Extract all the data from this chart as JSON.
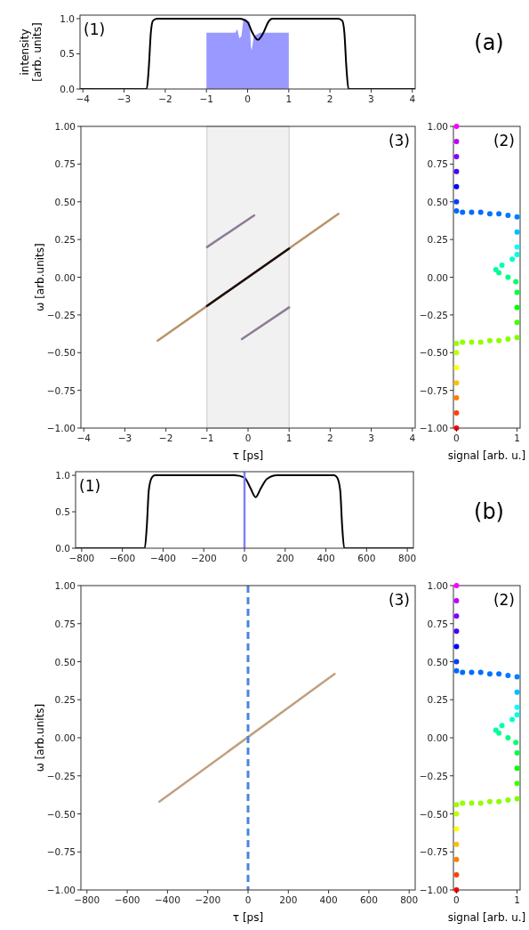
{
  "chart_data": [
    {
      "type": "line",
      "ylabel": "intensity [arb. units]",
      "annotations": [
        "(1)",
        "(a)"
      ],
      "xlim": [
        -4.07,
        4.07
      ],
      "ylim": [
        0,
        1.05
      ],
      "xticks": [
        -4,
        -3,
        -2,
        -1,
        0,
        1,
        2,
        3,
        4
      ],
      "yticks": [
        {
          "value": 0,
          "label": "0.0"
        },
        {
          "value": 0.5,
          "label": "0.5"
        },
        {
          "value": 1,
          "label": "1.0"
        }
      ],
      "grid": false,
      "series": [
        {
          "type": "area",
          "color": "#9999ff",
          "x": [
            -1,
            -0.5,
            -0.3,
            -0.25,
            -0.2,
            -0.15,
            -0.1,
            -0.05,
            0.05,
            0.08,
            0.1,
            0.15,
            0.3,
            0.5,
            1
          ],
          "values": [
            0.8,
            0.8,
            0.8,
            0.85,
            0.72,
            0.75,
            1,
            1,
            0.95,
            0.6,
            0.55,
            0.75,
            0.8,
            0.8,
            0.8
          ]
        },
        {
          "color": "#000000",
          "x": [
            -4.07,
            -2.45,
            -2.4,
            -2.35,
            -2.3,
            -2.2,
            -0.2,
            0,
            0.1,
            0.25,
            0.4,
            0.5,
            0.6,
            2.2,
            2.3,
            2.35,
            2.4,
            2.45,
            4.07
          ],
          "values": [
            0,
            0,
            0.3,
            0.8,
            0.97,
            1,
            1,
            0.95,
            0.82,
            0.7,
            0.82,
            0.95,
            1,
            1,
            0.97,
            0.8,
            0.3,
            0,
            0
          ]
        }
      ]
    },
    {
      "type": "line",
      "xlabel": "τ [ps]",
      "ylabel": "ω [arb.units]",
      "annotations": [
        "(3)"
      ],
      "xlim": [
        -4.07,
        4.07
      ],
      "ylim": [
        -1,
        1
      ],
      "xticks": [
        -4,
        -3,
        -2,
        -1,
        0,
        1,
        2,
        3,
        4
      ],
      "yticks": [
        {
          "value": -1,
          "label": "−1.00"
        },
        {
          "value": -0.75,
          "label": "−0.75"
        },
        {
          "value": -0.5,
          "label": "−0.50"
        },
        {
          "value": -0.25,
          "label": "−0.25"
        },
        {
          "value": 0,
          "label": "0.00"
        },
        {
          "value": 0.25,
          "label": "0.25"
        },
        {
          "value": 0.5,
          "label": "0.50"
        },
        {
          "value": 0.75,
          "label": "0.75"
        },
        {
          "value": 1,
          "label": "1.00"
        }
      ],
      "grid": false,
      "bands": [
        {
          "axis": "x",
          "from": -1,
          "to": 1,
          "color": "#e8e8e8"
        }
      ],
      "series": [
        {
          "color": "#b8946a",
          "x": [
            -2.2,
            2.2
          ],
          "values": [
            -0.42,
            0.42
          ]
        },
        {
          "color": "#1a1010",
          "x": [
            -1,
            1
          ],
          "values": [
            -0.19,
            0.19
          ]
        },
        {
          "color": "#8c7c94",
          "x": [
            -1,
            0.15
          ],
          "values": [
            0.2,
            0.41
          ]
        },
        {
          "color": "#8c7c94",
          "x": [
            -0.15,
            1
          ],
          "values": [
            -0.41,
            -0.2
          ]
        }
      ]
    },
    {
      "type": "scatter",
      "xlabel": "signal [arb. u.]",
      "annotations": [
        "(2)"
      ],
      "xlim": [
        -0.05,
        1.05
      ],
      "ylim": [
        -1,
        1
      ],
      "xticks": [
        0,
        1
      ],
      "yticks": [
        {
          "value": -1,
          "label": "−1.00"
        },
        {
          "value": -0.75,
          "label": "−0.75"
        },
        {
          "value": -0.5,
          "label": "−0.50"
        },
        {
          "value": -0.25,
          "label": "−0.25"
        },
        {
          "value": 0,
          "label": "0.00"
        },
        {
          "value": 0.25,
          "label": "0.25"
        },
        {
          "value": 0.5,
          "label": "0.50"
        },
        {
          "value": 0.75,
          "label": "0.75"
        },
        {
          "value": 1,
          "label": "1.00"
        }
      ],
      "grid": false,
      "marker": "circle",
      "series": [
        {
          "x": [
            0,
            0,
            0,
            0,
            0,
            0,
            0,
            0.1,
            0.25,
            0.4,
            0.55,
            0.7,
            0.85,
            1,
            1,
            1,
            1,
            0.98,
            0.85,
            0.7,
            0.65,
            0.75,
            0.92,
            1,
            1,
            1,
            1,
            0.85,
            0.7,
            0.55,
            0.4,
            0.25,
            0.1,
            0,
            0,
            0,
            0,
            0,
            0,
            0
          ],
          "values": [
            -1,
            -0.9,
            -0.8,
            -0.7,
            -0.6,
            -0.5,
            -0.44,
            -0.43,
            -0.43,
            -0.43,
            -0.42,
            -0.42,
            -0.41,
            -0.4,
            -0.3,
            -0.2,
            -0.1,
            -0.03,
            0,
            0.03,
            0.05,
            0.08,
            0.12,
            0.15,
            0.2,
            0.3,
            0.4,
            0.41,
            0.42,
            0.42,
            0.43,
            0.43,
            0.43,
            0.44,
            0.5,
            0.6,
            0.7,
            0.8,
            0.9,
            1
          ],
          "colors": [
            "#ff0000",
            "#ff4000",
            "#ff8000",
            "#ffbf00",
            "#ffff00",
            "#bfff00",
            "#99ff00",
            "#93ff00",
            "#93ff00",
            "#93ff00",
            "#8cff00",
            "#8cff00",
            "#86ff00",
            "#80ff00",
            "#40ff00",
            "#00ff00",
            "#00ff40",
            "#00ff6c",
            "#00ff80",
            "#00ff93",
            "#00ff9f",
            "#00ffb2",
            "#00ffcc",
            "#00ffdf",
            "#00ffff",
            "#00bfff",
            "#0080ff",
            "#0079ff",
            "#0073ff",
            "#0073ff",
            "#006cff",
            "#006cff",
            "#006cff",
            "#0066ff",
            "#0040ff",
            "#0000ff",
            "#4000ff",
            "#8000ff",
            "#bf00ff",
            "#ff00ff"
          ]
        }
      ]
    },
    {
      "type": "line",
      "annotations": [
        "(1)",
        "(b)"
      ],
      "xlim": [
        -830,
        830
      ],
      "ylim": [
        0,
        1.05
      ],
      "xticks": [
        -800,
        -600,
        -400,
        -200,
        0,
        200,
        400,
        600,
        800
      ],
      "yticks": [
        {
          "value": 0,
          "label": "0.0"
        },
        {
          "value": 0.5,
          "label": "0.5"
        },
        {
          "value": 1,
          "label": "1.0"
        }
      ],
      "grid": false,
      "ref_lines": [
        {
          "axis": "x",
          "value": 0,
          "color": "#8080ff"
        }
      ],
      "series": [
        {
          "color": "#000000",
          "x": [
            -830,
            -490,
            -480,
            -470,
            -455,
            -440,
            -50,
            0,
            30,
            55,
            80,
            110,
            160,
            440,
            455,
            470,
            480,
            490,
            830
          ],
          "values": [
            0,
            0,
            0.3,
            0.8,
            0.97,
            1,
            1,
            0.97,
            0.82,
            0.7,
            0.82,
            0.95,
            1,
            1,
            0.97,
            0.8,
            0.3,
            0,
            0
          ]
        }
      ]
    },
    {
      "type": "line",
      "xlabel": "τ [ps]",
      "ylabel": "ω [arb.units]",
      "annotations": [
        "(3)"
      ],
      "xlim": [
        -830,
        830
      ],
      "ylim": [
        -1,
        1
      ],
      "xticks": [
        -800,
        -600,
        -400,
        -200,
        0,
        200,
        400,
        600,
        800
      ],
      "yticks": [
        {
          "value": -1,
          "label": "−1.00"
        },
        {
          "value": -0.75,
          "label": "−0.75"
        },
        {
          "value": -0.5,
          "label": "−0.50"
        },
        {
          "value": -0.25,
          "label": "−0.25"
        },
        {
          "value": 0,
          "label": "0.00"
        },
        {
          "value": 0.25,
          "label": "0.25"
        },
        {
          "value": 0.5,
          "label": "0.50"
        },
        {
          "value": 0.75,
          "label": "0.75"
        },
        {
          "value": 1,
          "label": "1.00"
        }
      ],
      "grid": false,
      "ref_lines": [
        {
          "axis": "x",
          "value": 0,
          "color": "#4a86d8",
          "line_style": "dashed"
        }
      ],
      "series": [
        {
          "color": "#c0a080",
          "x": [
            -440,
            430
          ],
          "values": [
            -0.42,
            0.42
          ]
        }
      ]
    },
    {
      "type": "scatter",
      "xlabel": "signal [arb. u.]",
      "annotations": [
        "(2)"
      ],
      "xlim": [
        -0.05,
        1.05
      ],
      "ylim": [
        -1,
        1
      ],
      "xticks": [
        0,
        1
      ],
      "yticks": [
        {
          "value": -1,
          "label": "−1.00"
        },
        {
          "value": -0.75,
          "label": "−0.75"
        },
        {
          "value": -0.5,
          "label": "−0.50"
        },
        {
          "value": -0.25,
          "label": "−0.25"
        },
        {
          "value": 0,
          "label": "0.00"
        },
        {
          "value": 0.25,
          "label": "0.25"
        },
        {
          "value": 0.5,
          "label": "0.50"
        },
        {
          "value": 0.75,
          "label": "0.75"
        },
        {
          "value": 1,
          "label": "1.00"
        }
      ],
      "grid": false,
      "marker": "circle",
      "series": [
        {
          "x": [
            0,
            0,
            0,
            0,
            0,
            0,
            0,
            0.1,
            0.25,
            0.4,
            0.55,
            0.7,
            0.85,
            1,
            1,
            1,
            1,
            0.98,
            0.85,
            0.7,
            0.65,
            0.75,
            0.92,
            1,
            1,
            1,
            1,
            0.85,
            0.7,
            0.55,
            0.4,
            0.25,
            0.1,
            0,
            0,
            0,
            0,
            0,
            0,
            0
          ],
          "values": [
            -1,
            -0.9,
            -0.8,
            -0.7,
            -0.6,
            -0.5,
            -0.44,
            -0.43,
            -0.43,
            -0.43,
            -0.42,
            -0.42,
            -0.41,
            -0.4,
            -0.3,
            -0.2,
            -0.1,
            -0.03,
            0,
            0.03,
            0.05,
            0.08,
            0.12,
            0.15,
            0.2,
            0.3,
            0.4,
            0.41,
            0.42,
            0.42,
            0.43,
            0.43,
            0.43,
            0.44,
            0.5,
            0.6,
            0.7,
            0.8,
            0.9,
            1
          ],
          "colors": [
            "#ff0000",
            "#ff4000",
            "#ff8000",
            "#ffbf00",
            "#ffff00",
            "#bfff00",
            "#99ff00",
            "#93ff00",
            "#93ff00",
            "#93ff00",
            "#8cff00",
            "#8cff00",
            "#86ff00",
            "#80ff00",
            "#40ff00",
            "#00ff00",
            "#00ff40",
            "#00ff6c",
            "#00ff80",
            "#00ff93",
            "#00ff9f",
            "#00ffb2",
            "#00ffcc",
            "#00ffdf",
            "#00ffff",
            "#00bfff",
            "#0080ff",
            "#0079ff",
            "#0073ff",
            "#0073ff",
            "#006cff",
            "#006cff",
            "#006cff",
            "#0066ff",
            "#0040ff",
            "#0000ff",
            "#4000ff",
            "#8000ff",
            "#bf00ff",
            "#ff00ff"
          ]
        }
      ]
    }
  ]
}
